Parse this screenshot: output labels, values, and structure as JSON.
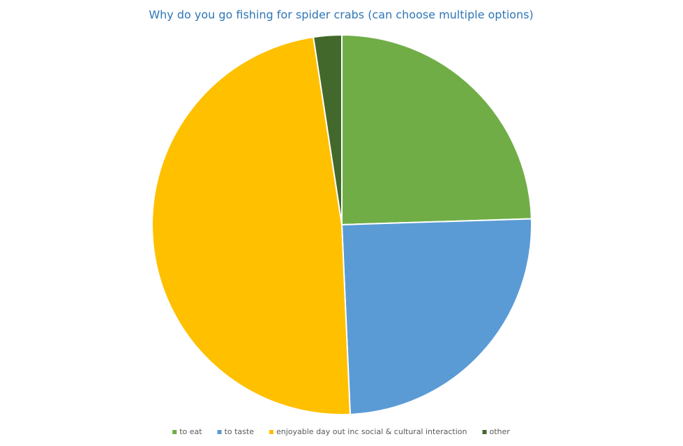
{
  "chart_data": {
    "type": "pie",
    "title": "Why do you go fishing for spider crabs (can choose multiple options)",
    "categories": [
      "to eat",
      "to taste",
      "enjoyable day out inc social & cultural interaction",
      "other"
    ],
    "values": [
      24.5,
      24.8,
      48.3,
      2.4
    ],
    "colors": [
      "#70ad47",
      "#5b9bd5",
      "#ffc000",
      "#43682b"
    ],
    "legend": "bottom"
  }
}
